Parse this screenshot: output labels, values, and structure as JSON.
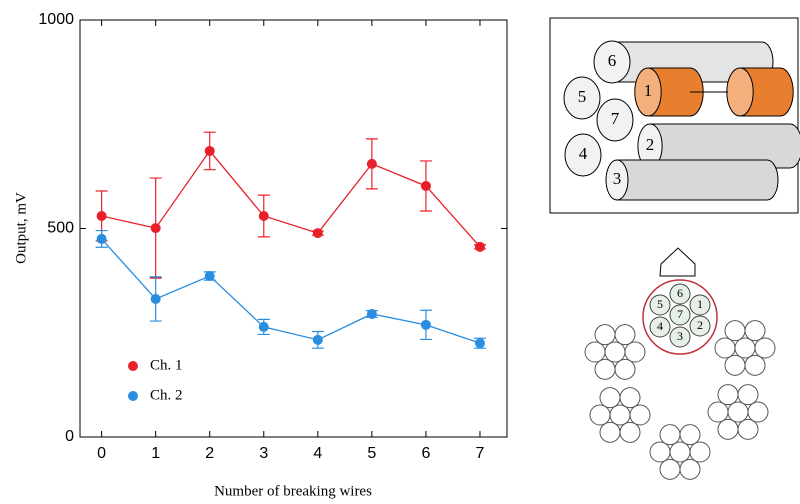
{
  "chart_data": {
    "type": "line",
    "x_label": "Number of breaking wires",
    "y_label": "Output, mV",
    "x": [
      0,
      1,
      2,
      3,
      4,
      5,
      6,
      7
    ],
    "xlim": [
      -0.4,
      7.5
    ],
    "xticks": [
      0,
      1,
      2,
      3,
      4,
      5,
      6,
      7
    ],
    "ylim": [
      0,
      1000
    ],
    "yticks": [
      0,
      500,
      1000
    ],
    "legend": "lower left",
    "series": [
      {
        "name": "Ch. 1",
        "color": "#e8202a",
        "values": [
          530,
          501,
          686,
          530,
          489,
          655,
          602,
          456
        ],
        "errors": [
          60,
          120,
          45,
          50,
          5,
          60,
          60,
          5
        ]
      },
      {
        "name": "Ch. 2",
        "color": "#2a8ee0",
        "values": [
          475,
          331,
          386,
          264,
          233,
          295,
          269,
          225
        ],
        "errors": [
          20,
          53,
          10,
          18,
          20,
          8,
          35,
          12
        ]
      }
    ]
  },
  "diagram": {
    "wire_labels": [
      "1",
      "2",
      "3",
      "4",
      "5",
      "6",
      "7"
    ]
  }
}
